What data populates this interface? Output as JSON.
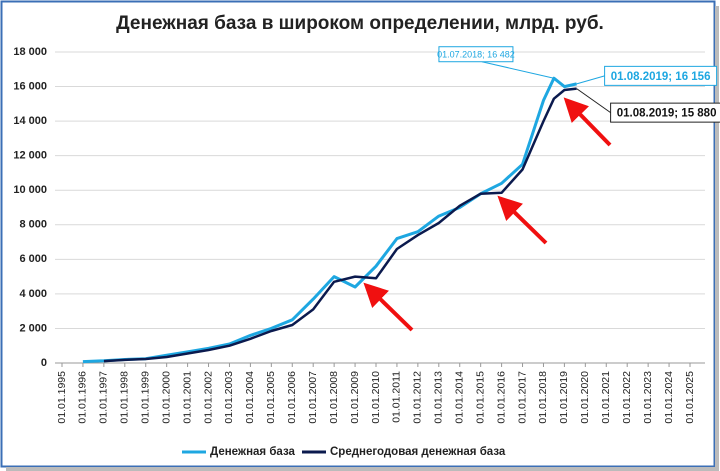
{
  "chart_data": {
    "type": "line",
    "title": "Денежная база в широком определении, млрд. руб.",
    "x": [
      "01.01.1996",
      "01.01.1997",
      "01.01.1998",
      "01.01.1999",
      "01.01.2000",
      "01.01.2001",
      "01.01.2002",
      "01.01.2003",
      "01.01.2004",
      "01.01.2005",
      "01.01.2006",
      "01.01.2007",
      "01.01.2008",
      "01.01.2009",
      "01.01.2010",
      "01.01.2011",
      "01.01.2012",
      "01.01.2013",
      "01.01.2014",
      "01.01.2015",
      "01.01.2016",
      "01.01.2017",
      "01.01.2018",
      "01.07.2018",
      "01.01.2019",
      "01.08.2019"
    ],
    "series": [
      {
        "name": "Денежная база",
        "color": "#1ea7e1",
        "values": [
          80,
          130,
          200,
          250,
          450,
          650,
          850,
          1100,
          1600,
          2000,
          2500,
          3700,
          5000,
          4400,
          5600,
          7200,
          7600,
          8500,
          9000,
          9800,
          10400,
          11500,
          15200,
          16482,
          16000,
          16156
        ],
        "value_labels": [
          null,
          null,
          null,
          null,
          null,
          null,
          null,
          null,
          null,
          null,
          null,
          null,
          null,
          null,
          null,
          null,
          null,
          null,
          null,
          null,
          null,
          null,
          null,
          "01.07.2018; 16 482",
          null,
          "01.08.2019;  16 156"
        ]
      },
      {
        "name": "Среднегодовая денежная база",
        "color": "#0b1a4e",
        "values": [
          null,
          110,
          180,
          230,
          350,
          550,
          750,
          1000,
          1400,
          1850,
          2200,
          3100,
          4700,
          5000,
          4900,
          6600,
          7400,
          8100,
          9100,
          9800,
          9850,
          11200,
          14000,
          15300,
          15800,
          15880
        ],
        "value_labels": [
          null,
          null,
          null,
          null,
          null,
          null,
          null,
          null,
          null,
          null,
          null,
          null,
          null,
          null,
          null,
          null,
          null,
          null,
          null,
          null,
          null,
          null,
          null,
          null,
          null,
          "01.08.2019;  15 880"
        ]
      }
    ],
    "xlim": [
      "01.01.1995",
      "01.01.2025"
    ],
    "xticks": [
      "01.01.1995",
      "01.01.1996",
      "01.01.1997",
      "01.01.1998",
      "01.01.1999",
      "01.01.2000",
      "01.01.2001",
      "01.01.2002",
      "01.01.2003",
      "01.01.2004",
      "01.01.2005",
      "01.01.2006",
      "01.01.2007",
      "01.01.2008",
      "01.01.2009",
      "01.01.2010",
      "01.01.2011",
      "01.01.2012",
      "01.01.2013",
      "01.01.2014",
      "01.01.2015",
      "01.01.2016",
      "01.01.2017",
      "01.01.2018",
      "01.01.2019",
      "01.01.2020",
      "01.01.2021",
      "01.01.2022",
      "01.01.2023",
      "01.01.2024",
      "01.01.2025"
    ],
    "ylim": [
      0,
      18000
    ],
    "yticks": [
      0,
      {
        "value": 2000,
        "label": "2 000"
      },
      {
        "value": 4000,
        "label": "4 000"
      },
      {
        "value": 6000,
        "label": "6 000"
      },
      {
        "value": 8000,
        "label": "8 000"
      },
      {
        "value": 10000,
        "label": "10 000"
      },
      {
        "value": 12000,
        "label": "12 000"
      },
      {
        "value": 14000,
        "label": "14 000"
      },
      {
        "value": 16000,
        "label": "16 000"
      },
      {
        "value": 18000,
        "label": "18 000"
      }
    ],
    "grid": true
  }
}
